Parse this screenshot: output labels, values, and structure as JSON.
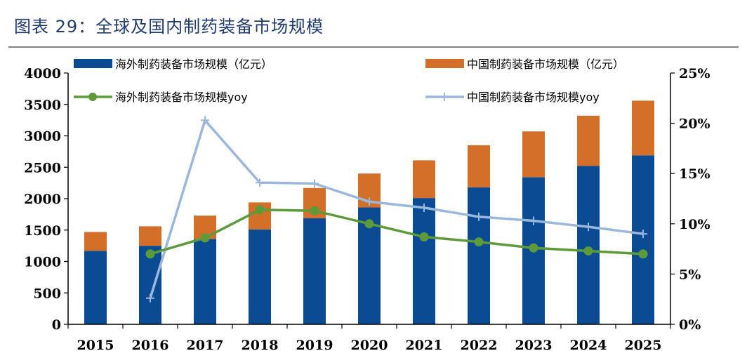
{
  "title": "图表 29：全球及国内制药装备市场规模",
  "colors": {
    "title": "#1f3a70",
    "overseas_bar": "#0b4b94",
    "china_bar": "#d46f2a",
    "overseas_yoy": "#5d9b3a",
    "china_yoy": "#9ab8dd",
    "axis": "#000000",
    "title_rule": "#7d7f95"
  },
  "chart_data": {
    "type": "bar",
    "stacked": true,
    "categories": [
      "2015",
      "2016",
      "2017",
      "2018",
      "2019",
      "2020",
      "2021",
      "2022",
      "2023",
      "2024",
      "2025"
    ],
    "series": [
      {
        "name": "海外制药装备市场规模（亿元）",
        "type": "bar",
        "axis": "left",
        "values": [
          1170,
          1250,
          1360,
          1510,
          1690,
          1860,
          2010,
          2180,
          2340,
          2520,
          2690
        ]
      },
      {
        "name": "中国制药装备市场规模（亿元）",
        "type": "bar",
        "axis": "left",
        "values": [
          300,
          310,
          370,
          430,
          480,
          540,
          600,
          670,
          730,
          800,
          870
        ]
      },
      {
        "name": "海外制药装备市场规模yoy",
        "type": "line",
        "axis": "right",
        "marker": "circle",
        "values": [
          null,
          7.0,
          8.6,
          11.4,
          11.3,
          10.0,
          8.7,
          8.2,
          7.6,
          7.3,
          7.0
        ]
      },
      {
        "name": "中国制药装备市场规模yoy",
        "type": "line",
        "axis": "right",
        "marker": "plus",
        "values": [
          null,
          2.6,
          20.3,
          14.1,
          14.0,
          12.2,
          11.6,
          10.7,
          10.3,
          9.7,
          9.0
        ]
      }
    ],
    "ylim": [
      0,
      4000
    ],
    "yticks": [
      "0",
      "500",
      "1000",
      "1500",
      "2000",
      "2500",
      "3000",
      "3500",
      "4000"
    ],
    "ylim_right": [
      0,
      25
    ],
    "yticks_right": [
      "0%",
      "5%",
      "10%",
      "15%",
      "20%",
      "25%"
    ],
    "grid": false,
    "legend_position": "top"
  }
}
